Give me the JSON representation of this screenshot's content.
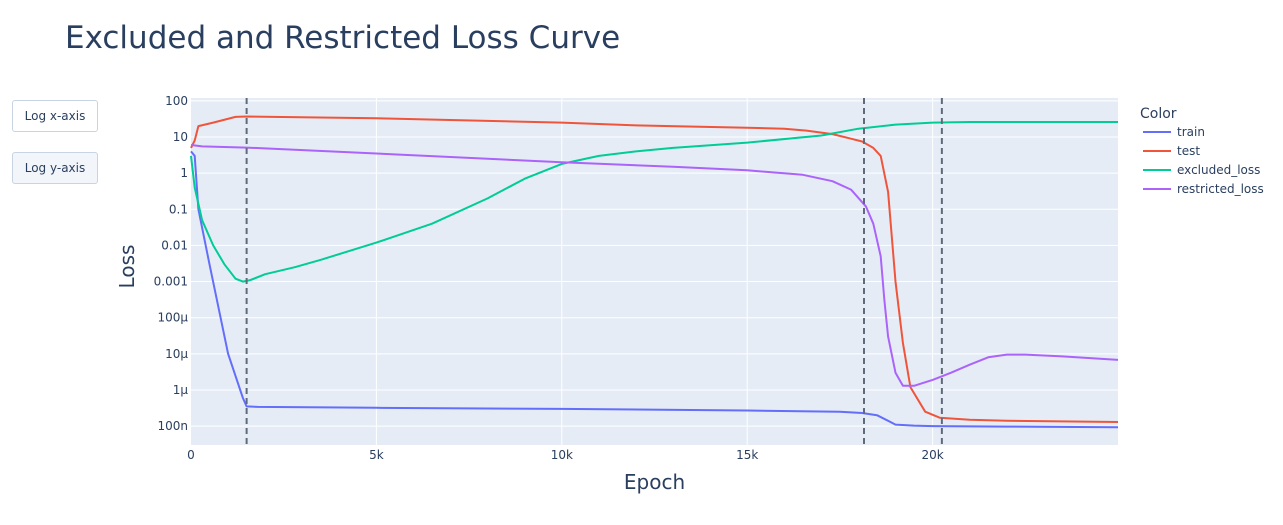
{
  "buttons": [
    {
      "label": "Log x-axis",
      "active": false
    },
    {
      "label": "Log y-axis",
      "active": true
    }
  ],
  "colors": {
    "plot_bg": "#e5ecf6",
    "grid": "#ffffff",
    "text": "#2a3f5f",
    "vline": "#5f6b7a"
  },
  "chart_data": {
    "type": "line",
    "title": "Excluded and Restricted Loss Curve",
    "xlabel": "Epoch",
    "ylabel": "Loss",
    "ylog": true,
    "xlim": [
      0,
      25000
    ],
    "ylim": [
      3e-08,
      120
    ],
    "x_ticks": [
      {
        "value": 0,
        "label": "0"
      },
      {
        "value": 5000,
        "label": "5k"
      },
      {
        "value": 10000,
        "label": "10k"
      },
      {
        "value": 15000,
        "label": "15k"
      },
      {
        "value": 20000,
        "label": "20k"
      }
    ],
    "y_ticks": [
      {
        "value": 100,
        "label": "100"
      },
      {
        "value": 10,
        "label": "10"
      },
      {
        "value": 1,
        "label": "1"
      },
      {
        "value": 0.1,
        "label": "0.1"
      },
      {
        "value": 0.01,
        "label": "0.01"
      },
      {
        "value": 0.001,
        "label": "0.001"
      },
      {
        "value": 0.0001,
        "label": "100μ"
      },
      {
        "value": 1e-05,
        "label": "10μ"
      },
      {
        "value": 1e-06,
        "label": "1μ"
      },
      {
        "value": 1e-07,
        "label": "100n"
      }
    ],
    "legend_title": "Color",
    "legend_position": "right",
    "grid": true,
    "vlines": [
      1500,
      18150,
      20250
    ],
    "series": [
      {
        "name": "train",
        "color": "#636efa",
        "points": [
          [
            0,
            4
          ],
          [
            100,
            3
          ],
          [
            200,
            0.1
          ],
          [
            500,
            0.003
          ],
          [
            1000,
            1e-05
          ],
          [
            1400,
            6e-07
          ],
          [
            1500,
            3.5e-07
          ],
          [
            1800,
            3.4e-07
          ],
          [
            5000,
            3.2e-07
          ],
          [
            10000,
            3e-07
          ],
          [
            15000,
            2.7e-07
          ],
          [
            17500,
            2.5e-07
          ],
          [
            18100,
            2.3e-07
          ],
          [
            18500,
            2e-07
          ],
          [
            19000,
            1.1e-07
          ],
          [
            19500,
            1.03e-07
          ],
          [
            20000,
            1e-07
          ],
          [
            22000,
            9.7e-08
          ],
          [
            25000,
            9.3e-08
          ]
        ]
      },
      {
        "name": "test",
        "color": "#ef553b",
        "points": [
          [
            0,
            5
          ],
          [
            100,
            8
          ],
          [
            200,
            20
          ],
          [
            600,
            25
          ],
          [
            1200,
            36
          ],
          [
            1500,
            37
          ],
          [
            5000,
            33
          ],
          [
            10000,
            25
          ],
          [
            12000,
            21
          ],
          [
            15000,
            18
          ],
          [
            16000,
            17
          ],
          [
            16600,
            15
          ],
          [
            17300,
            12
          ],
          [
            17800,
            9
          ],
          [
            18100,
            7.5
          ],
          [
            18400,
            5
          ],
          [
            18600,
            3
          ],
          [
            18800,
            0.3
          ],
          [
            19000,
            0.001
          ],
          [
            19200,
            2e-05
          ],
          [
            19400,
            1.2e-06
          ],
          [
            19800,
            2.5e-07
          ],
          [
            20200,
            1.7e-07
          ],
          [
            21000,
            1.5e-07
          ],
          [
            22000,
            1.4e-07
          ],
          [
            25000,
            1.3e-07
          ]
        ]
      },
      {
        "name": "excluded_loss",
        "color": "#00cc96",
        "points": [
          [
            0,
            3
          ],
          [
            100,
            0.4
          ],
          [
            300,
            0.05
          ],
          [
            600,
            0.01
          ],
          [
            900,
            0.003
          ],
          [
            1200,
            0.0012
          ],
          [
            1400,
            0.001
          ],
          [
            1600,
            0.0011
          ],
          [
            2000,
            0.0016
          ],
          [
            2800,
            0.0025
          ],
          [
            3500,
            0.004
          ],
          [
            5000,
            0.012
          ],
          [
            6500,
            0.04
          ],
          [
            8000,
            0.2
          ],
          [
            9000,
            0.7
          ],
          [
            10000,
            1.8
          ],
          [
            11000,
            3
          ],
          [
            12000,
            4
          ],
          [
            13000,
            5
          ],
          [
            15000,
            7
          ],
          [
            17000,
            11
          ],
          [
            18000,
            17
          ],
          [
            19000,
            22
          ],
          [
            20000,
            25
          ],
          [
            21000,
            26
          ],
          [
            25000,
            26
          ]
        ]
      },
      {
        "name": "restricted_loss",
        "color": "#ab63fa",
        "points": [
          [
            0,
            6
          ],
          [
            300,
            5.5
          ],
          [
            1500,
            5.1
          ],
          [
            5000,
            3.5
          ],
          [
            10000,
            2
          ],
          [
            13000,
            1.5
          ],
          [
            15000,
            1.2
          ],
          [
            16500,
            0.9
          ],
          [
            17300,
            0.6
          ],
          [
            17800,
            0.35
          ],
          [
            18200,
            0.12
          ],
          [
            18400,
            0.04
          ],
          [
            18600,
            0.005
          ],
          [
            18700,
            0.0003
          ],
          [
            18800,
            3e-05
          ],
          [
            19000,
            3e-06
          ],
          [
            19200,
            1.3e-06
          ],
          [
            19500,
            1.3e-06
          ],
          [
            20000,
            1.9e-06
          ],
          [
            20500,
            3e-06
          ],
          [
            21000,
            5e-06
          ],
          [
            21500,
            8e-06
          ],
          [
            22000,
            9.5e-06
          ],
          [
            22500,
            9.5e-06
          ],
          [
            23500,
            8.5e-06
          ],
          [
            25000,
            6.8e-06
          ]
        ]
      }
    ]
  }
}
